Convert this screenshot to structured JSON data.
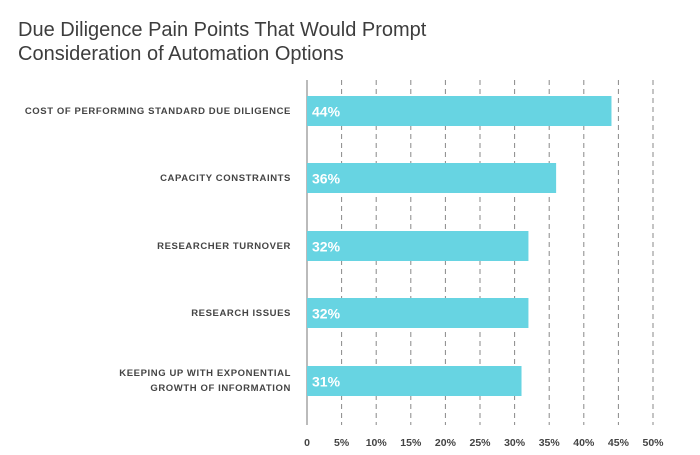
{
  "chart_data": {
    "type": "bar",
    "orientation": "horizontal",
    "title": "Due Diligence Pain Points That Would Prompt Consideration of Automation Options",
    "categories": [
      "COST OF PERFORMING STANDARD DUE DILIGENCE",
      "CAPACITY CONSTRAINTS",
      "RESEARCHER TURNOVER",
      "RESEARCH ISSUES",
      "KEEPING UP WITH EXPONENTIAL GROWTH OF INFORMATION"
    ],
    "values": [
      44,
      36,
      32,
      32,
      31
    ],
    "value_labels": [
      "44%",
      "36%",
      "32%",
      "32%",
      "31%"
    ],
    "xlim": [
      0,
      50
    ],
    "xticks": [
      0,
      5,
      10,
      15,
      20,
      25,
      30,
      35,
      40,
      45,
      50
    ],
    "xtick_labels": [
      "0",
      "5%",
      "10%",
      "15%",
      "20%",
      "25%",
      "30%",
      "35%",
      "40%",
      "45%",
      "50%"
    ],
    "xlabel": "",
    "ylabel": "",
    "grid": "vertical dashed",
    "legend": "none"
  },
  "colors": {
    "bar": "#67d4e2",
    "grid": "#888888",
    "title": "#3d3d3d",
    "label": "#444444",
    "value_text": "#ffffff"
  }
}
